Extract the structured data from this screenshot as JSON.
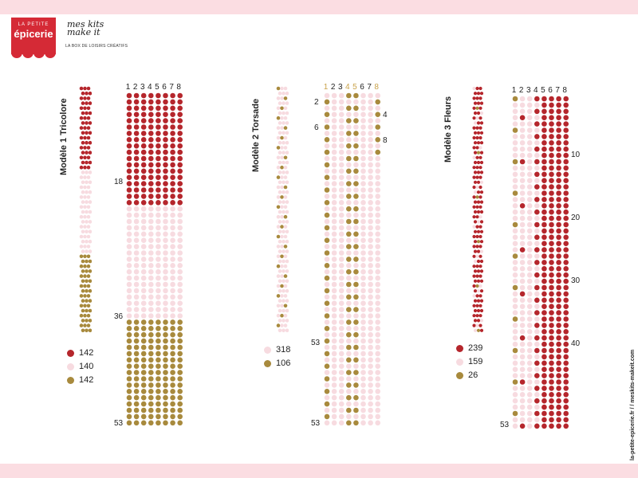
{
  "brand": {
    "logo_line1": "LA PETITE",
    "logo_line2": "épicerie",
    "partner_name": "mes kits make it",
    "partner_tagline": "LA BOX DE LOISIRS CRÉATIFS",
    "footer_url": "la-petite-epicerie.fr / / meskits-makeit.com"
  },
  "colors": {
    "red": "#b5262c",
    "pink": "#f7dbe0",
    "gold": "#a88a3d",
    "brand_red": "#d52a36",
    "band_pink": "#fbdde2"
  },
  "models": [
    {
      "title": "Modèle 1 Tricolore",
      "column_numbers": [
        "1",
        "2",
        "3",
        "4",
        "5",
        "6",
        "7",
        "8"
      ],
      "highlight_columns": [],
      "row_labels": [
        "18",
        "36",
        "53"
      ],
      "legend": [
        {
          "color": "red",
          "count": "142"
        },
        {
          "color": "pink",
          "count": "140"
        },
        {
          "color": "gold",
          "count": "142"
        }
      ]
    },
    {
      "title": "Modèle 2 Torsade",
      "column_numbers": [
        "1",
        "2",
        "3",
        "4",
        "5",
        "6",
        "7",
        "8"
      ],
      "highlight_columns": [
        "1",
        "4",
        "5",
        "8"
      ],
      "row_labels_left": [
        "2",
        "6",
        "53",
        "53"
      ],
      "row_labels_right": [
        "4",
        "8"
      ],
      "legend": [
        {
          "color": "pink",
          "count": "318"
        },
        {
          "color": "gold",
          "count": "106"
        }
      ]
    },
    {
      "title": "Modèle 3 Fleurs",
      "column_numbers": [
        "1",
        "2",
        "3",
        "4",
        "5",
        "6",
        "7",
        "8"
      ],
      "highlight_columns": [],
      "row_labels_right": [
        "10",
        "20",
        "30",
        "40"
      ],
      "row_labels_left": [
        "53"
      ],
      "legend": [
        {
          "color": "red",
          "count": "239"
        },
        {
          "color": "pink",
          "count": "159"
        },
        {
          "color": "gold",
          "count": "26"
        }
      ]
    }
  ]
}
